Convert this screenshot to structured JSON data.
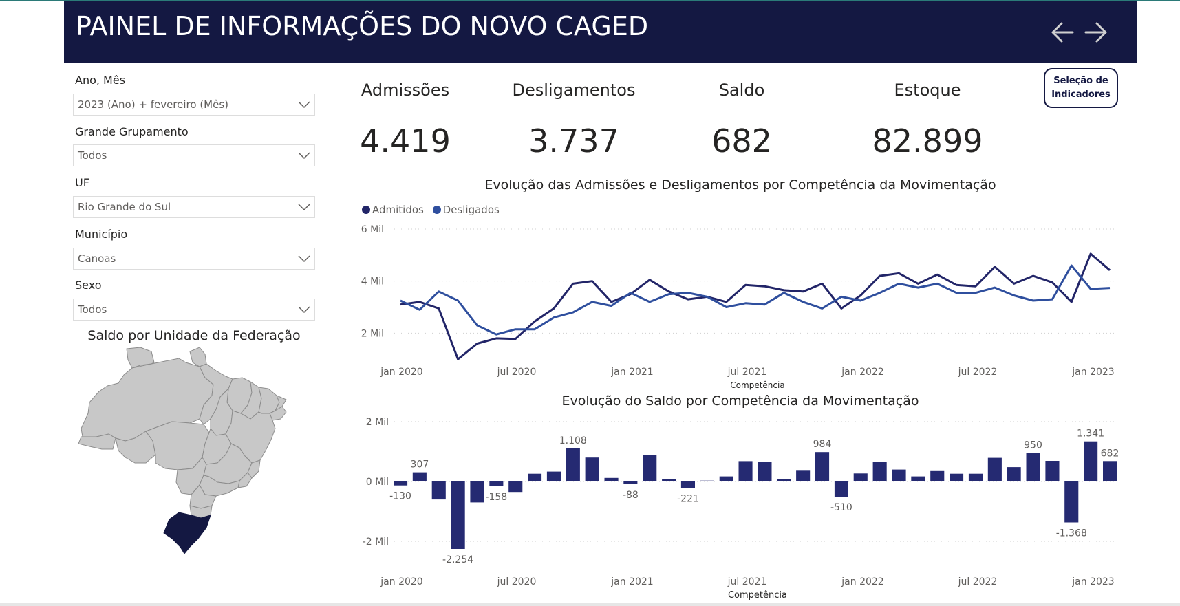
{
  "header": {
    "title": "PAINEL DE INFORMAÇÕES DO NOVO CAGED",
    "background": "#141842"
  },
  "filters": [
    {
      "label": "Ano, Mês",
      "value": "2023 (Ano) + fevereiro (Mês)"
    },
    {
      "label": "Grande Grupamento",
      "value": "Todos"
    },
    {
      "label": "UF",
      "value": "Rio Grande do Sul"
    },
    {
      "label": "Município",
      "value": "Canoas"
    },
    {
      "label": "Sexo",
      "value": "Todos"
    }
  ],
  "map": {
    "title": "Saldo por Unidade da Federação",
    "highlight_color": "#141842",
    "base_color": "#c8c8c8",
    "highlighted_state": "Rio Grande do Sul"
  },
  "kpis": [
    {
      "label": "Admissões",
      "value": "4.419"
    },
    {
      "label": "Desligamentos",
      "value": "3.737"
    },
    {
      "label": "Saldo",
      "value": "682"
    },
    {
      "label": "Estoque",
      "value": "82.899"
    }
  ],
  "selector_button": {
    "label_line1": "Seleção de",
    "label_line2": "Indicadores"
  },
  "chart_data": [
    {
      "type": "line",
      "title": "Evolução das Admissões e Desligamentos por Competência da Movimentação",
      "xlabel": "Competência",
      "ylabel": "",
      "ylim": [
        0,
        6000
      ],
      "yticks": [
        "2 Mil",
        "4 Mil",
        "6 Mil"
      ],
      "ytick_values": [
        2000,
        4000,
        6000
      ],
      "xtick_labels": [
        "jan 2020",
        "jul 2020",
        "jan 2021",
        "jul 2021",
        "jan 2022",
        "jul 2022",
        "jan 2023"
      ],
      "x": [
        "2020-01",
        "2020-02",
        "2020-03",
        "2020-04",
        "2020-05",
        "2020-06",
        "2020-07",
        "2020-08",
        "2020-09",
        "2020-10",
        "2020-11",
        "2020-12",
        "2021-01",
        "2021-02",
        "2021-03",
        "2021-04",
        "2021-05",
        "2021-06",
        "2021-07",
        "2021-08",
        "2021-09",
        "2021-10",
        "2021-11",
        "2021-12",
        "2022-01",
        "2022-02",
        "2022-03",
        "2022-04",
        "2022-05",
        "2022-06",
        "2022-07",
        "2022-08",
        "2022-09",
        "2022-10",
        "2022-11",
        "2022-12",
        "2023-01",
        "2023-02"
      ],
      "legend_position": "top-left",
      "series": [
        {
          "name": "Admitidos",
          "color": "#222568",
          "values": [
            3100,
            3200,
            2950,
            1000,
            1600,
            1800,
            1780,
            2450,
            2950,
            3900,
            4000,
            3200,
            3500,
            4050,
            3600,
            3300,
            3400,
            3200,
            3850,
            3800,
            3650,
            3600,
            3900,
            2950,
            3450,
            4200,
            4300,
            3900,
            4250,
            3850,
            3800,
            4550,
            3900,
            4200,
            3950,
            3200,
            5050,
            4419
          ]
        },
        {
          "name": "Desligados",
          "color": "#2f4f9e",
          "values": [
            3250,
            2900,
            3600,
            3250,
            2300,
            1950,
            2150,
            2150,
            2600,
            2800,
            3200,
            3050,
            3550,
            3200,
            3500,
            3550,
            3400,
            3000,
            3150,
            3100,
            3550,
            3200,
            2950,
            3400,
            3250,
            3550,
            3900,
            3750,
            3900,
            3550,
            3550,
            3750,
            3450,
            3250,
            3300,
            4600,
            3700,
            3737
          ]
        }
      ]
    },
    {
      "type": "bar",
      "title": "Evolução do Saldo por Competência da Movimentação",
      "xlabel": "Competência",
      "ylabel": "",
      "ylim": [
        -2600,
        2000
      ],
      "yticks": [
        "-2 Mil",
        "0 Mil",
        "2 Mil"
      ],
      "ytick_values": [
        -2000,
        0,
        2000
      ],
      "xtick_labels": [
        "jan 2020",
        "jul 2020",
        "jan 2021",
        "jul 2021",
        "jan 2022",
        "jul 2022",
        "jan 2023"
      ],
      "color": "#252a72",
      "categories": [
        "2020-01",
        "2020-02",
        "2020-03",
        "2020-04",
        "2020-05",
        "2020-06",
        "2020-07",
        "2020-08",
        "2020-09",
        "2020-10",
        "2020-11",
        "2020-12",
        "2021-01",
        "2021-02",
        "2021-03",
        "2021-04",
        "2021-05",
        "2021-06",
        "2021-07",
        "2021-08",
        "2021-09",
        "2021-10",
        "2021-11",
        "2021-12",
        "2022-01",
        "2022-02",
        "2022-03",
        "2022-04",
        "2022-05",
        "2022-06",
        "2022-07",
        "2022-08",
        "2022-09",
        "2022-10",
        "2022-11",
        "2022-12",
        "2023-01",
        "2023-02"
      ],
      "values": [
        -130,
        307,
        -600,
        -2254,
        -700,
        -158,
        -350,
        260,
        330,
        1108,
        800,
        120,
        -88,
        880,
        90,
        -221,
        30,
        170,
        680,
        650,
        90,
        360,
        984,
        -510,
        270,
        660,
        400,
        170,
        350,
        260,
        260,
        790,
        480,
        950,
        690,
        -1368,
        1341,
        682
      ],
      "data_labels": [
        {
          "index": 0,
          "text": "-130"
        },
        {
          "index": 1,
          "text": "307"
        },
        {
          "index": 3,
          "text": "-2.254"
        },
        {
          "index": 5,
          "text": "-158"
        },
        {
          "index": 9,
          "text": "1.108"
        },
        {
          "index": 12,
          "text": "-88"
        },
        {
          "index": 15,
          "text": "-221"
        },
        {
          "index": 22,
          "text": "984"
        },
        {
          "index": 23,
          "text": "-510"
        },
        {
          "index": 33,
          "text": "950"
        },
        {
          "index": 35,
          "text": "-1.368"
        },
        {
          "index": 36,
          "text": "1.341"
        },
        {
          "index": 37,
          "text": "682"
        }
      ]
    }
  ]
}
